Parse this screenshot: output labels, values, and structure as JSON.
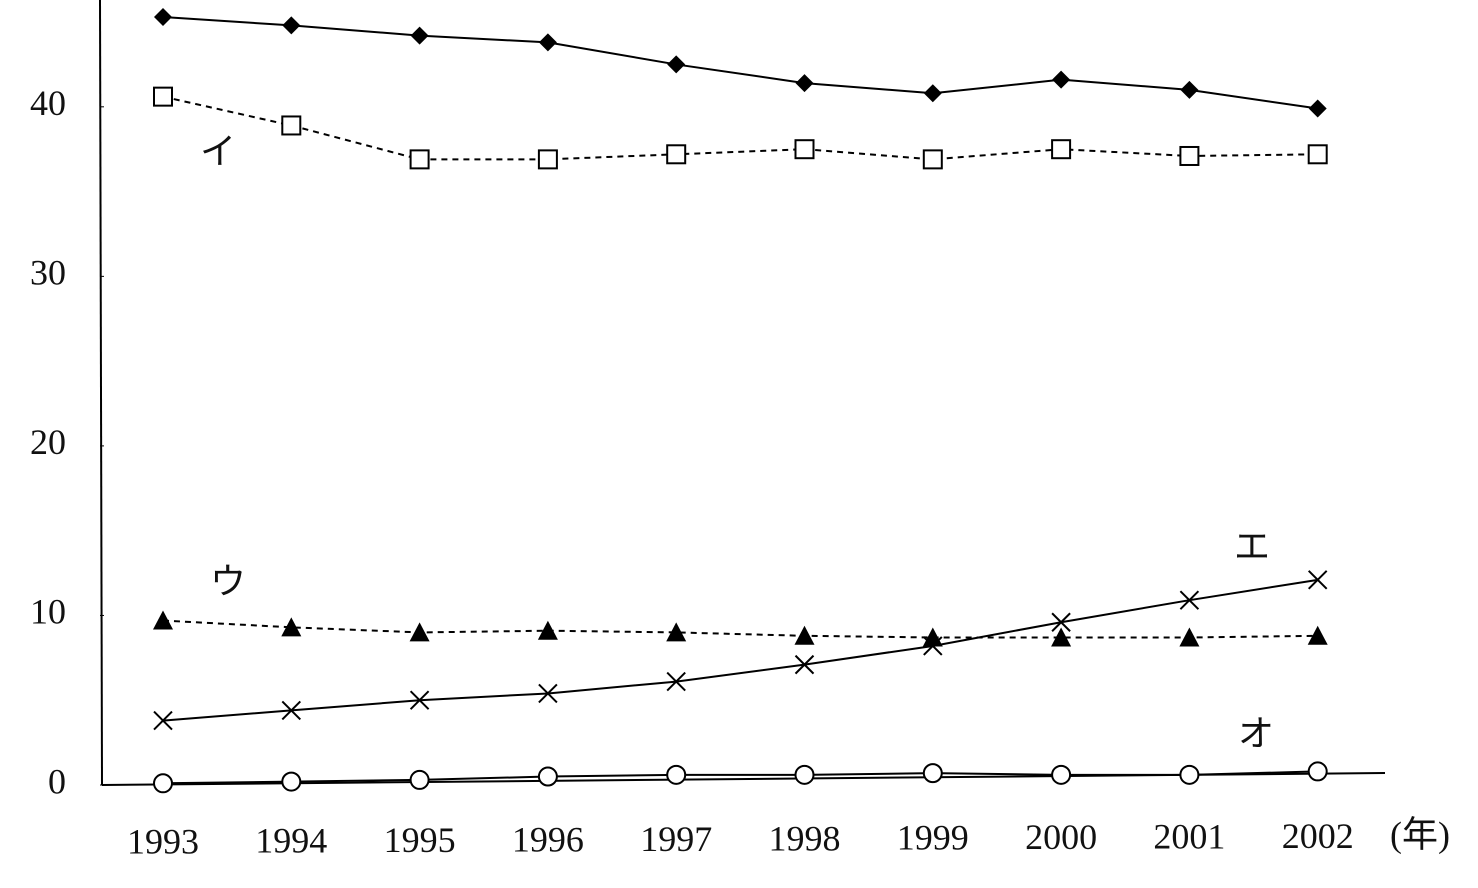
{
  "chart_data": {
    "type": "line",
    "categories": [
      "1993",
      "1994",
      "1995",
      "1996",
      "1997",
      "1998",
      "1999",
      "2000",
      "2001",
      "2002"
    ],
    "x_label": "(年)",
    "ylim": [
      0,
      46.3
    ],
    "yticks": [
      0,
      10,
      20,
      30,
      40
    ],
    "grid": false,
    "series": [
      {
        "color": "#000000",
        "marker": "diamond",
        "line_style": "solid",
        "values": [
          45.3,
          44.8,
          44.2,
          43.8,
          42.5,
          41.4,
          40.8,
          41.6,
          41.0,
          39.9
        ]
      },
      {
        "name": "イ",
        "color": "#000000",
        "marker": "square-open",
        "line_style": "dashed",
        "values": [
          40.6,
          38.9,
          36.9,
          36.9,
          37.2,
          37.5,
          36.9,
          37.5,
          37.1,
          37.2
        ]
      },
      {
        "name": "ウ",
        "color": "#000000",
        "marker": "triangle",
        "line_style": "dashed",
        "values": [
          9.7,
          9.3,
          9.0,
          9.1,
          9.0,
          8.8,
          8.7,
          8.7,
          8.7,
          8.8
        ]
      },
      {
        "name": "エ",
        "color": "#000000",
        "marker": "x",
        "line_style": "solid",
        "values": [
          3.8,
          4.4,
          5.0,
          5.4,
          6.1,
          7.1,
          8.2,
          9.6,
          10.9,
          12.1
        ]
      },
      {
        "name": "オ",
        "color": "#000000",
        "marker": "circle-open",
        "line_style": "solid",
        "values": [
          0.1,
          0.2,
          0.3,
          0.5,
          0.6,
          0.6,
          0.7,
          0.6,
          0.6,
          0.8
        ]
      }
    ]
  }
}
